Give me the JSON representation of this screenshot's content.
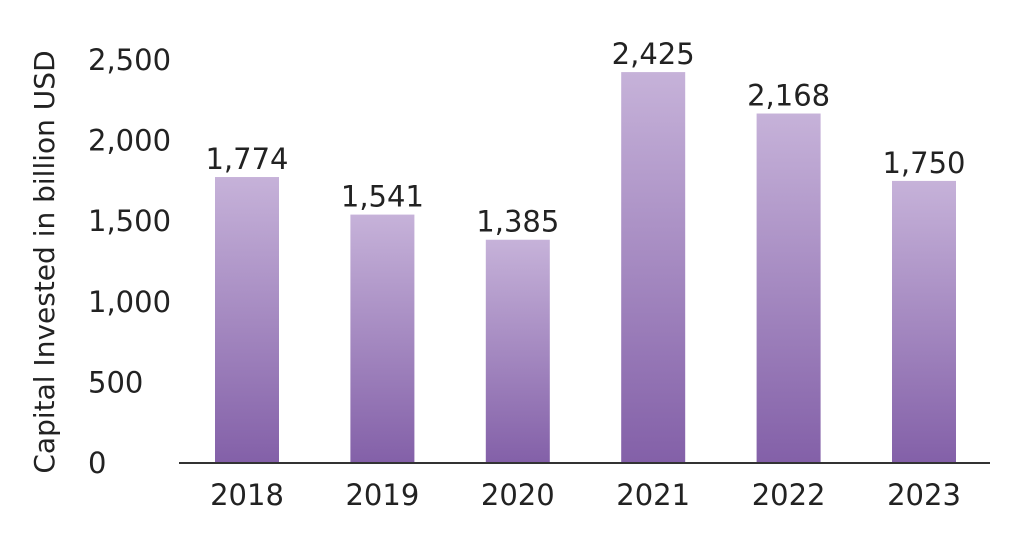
{
  "chart_data": {
    "type": "bar",
    "title": "",
    "xlabel": "",
    "ylabel": "Capital Invested in billion USD",
    "categories": [
      "2018",
      "2019",
      "2020",
      "2021",
      "2022",
      "2023"
    ],
    "values": [
      1774,
      1541,
      1385,
      2425,
      2168,
      1750
    ],
    "value_labels": [
      "1,774",
      "1,541",
      "1,385",
      "2,425",
      "2,168",
      "1,750"
    ],
    "ylim": [
      0,
      2500
    ],
    "yticks": [
      0,
      500,
      1000,
      1500,
      2000,
      2500
    ],
    "ytick_labels": [
      "0",
      "500",
      "1,000",
      "1,500",
      "2,000",
      "2,500"
    ],
    "grid": false,
    "legend": "none",
    "colors": {
      "bar_top": "#c6b2d9",
      "bar_bottom": "#8360a8",
      "axis": "#333333"
    }
  }
}
